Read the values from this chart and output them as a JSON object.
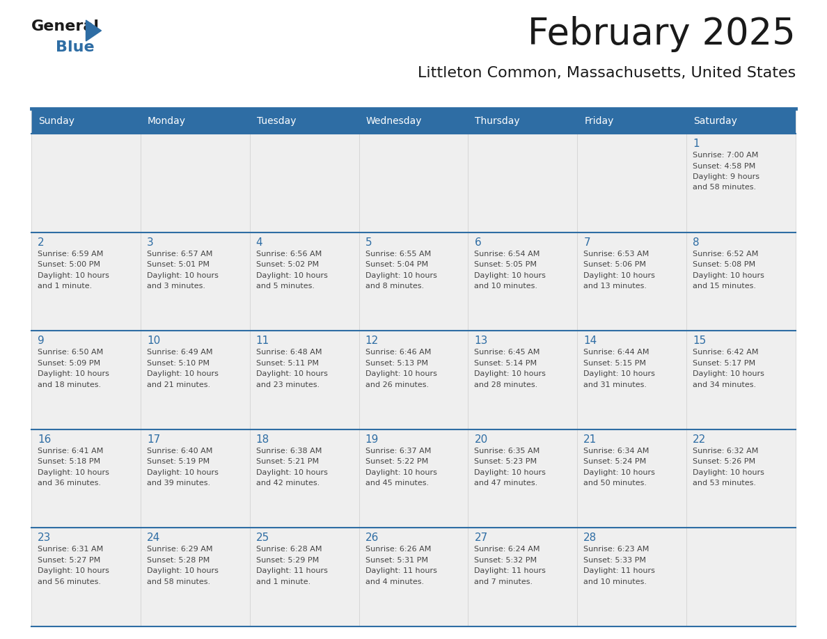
{
  "title": "February 2025",
  "subtitle": "Littleton Common, Massachusetts, United States",
  "days_of_week": [
    "Sunday",
    "Monday",
    "Tuesday",
    "Wednesday",
    "Thursday",
    "Friday",
    "Saturday"
  ],
  "header_bg": "#2E6DA4",
  "header_text": "#FFFFFF",
  "cell_bg": "#EFEFEF",
  "cell_bg_white": "#FFFFFF",
  "day_number_color": "#2E6DA4",
  "text_color": "#444444",
  "line_color": "#2E6DA4",
  "border_color": "#AAAAAA",
  "calendar_data": [
    [
      null,
      null,
      null,
      null,
      null,
      null,
      {
        "day": "1",
        "sunrise": "7:00 AM",
        "sunset": "4:58 PM",
        "daylight": "9 hours",
        "daylight2": "and 58 minutes."
      }
    ],
    [
      {
        "day": "2",
        "sunrise": "6:59 AM",
        "sunset": "5:00 PM",
        "daylight": "10 hours",
        "daylight2": "and 1 minute."
      },
      {
        "day": "3",
        "sunrise": "6:57 AM",
        "sunset": "5:01 PM",
        "daylight": "10 hours",
        "daylight2": "and 3 minutes."
      },
      {
        "day": "4",
        "sunrise": "6:56 AM",
        "sunset": "5:02 PM",
        "daylight": "10 hours",
        "daylight2": "and 5 minutes."
      },
      {
        "day": "5",
        "sunrise": "6:55 AM",
        "sunset": "5:04 PM",
        "daylight": "10 hours",
        "daylight2": "and 8 minutes."
      },
      {
        "day": "6",
        "sunrise": "6:54 AM",
        "sunset": "5:05 PM",
        "daylight": "10 hours",
        "daylight2": "and 10 minutes."
      },
      {
        "day": "7",
        "sunrise": "6:53 AM",
        "sunset": "5:06 PM",
        "daylight": "10 hours",
        "daylight2": "and 13 minutes."
      },
      {
        "day": "8",
        "sunrise": "6:52 AM",
        "sunset": "5:08 PM",
        "daylight": "10 hours",
        "daylight2": "and 15 minutes."
      }
    ],
    [
      {
        "day": "9",
        "sunrise": "6:50 AM",
        "sunset": "5:09 PM",
        "daylight": "10 hours",
        "daylight2": "and 18 minutes."
      },
      {
        "day": "10",
        "sunrise": "6:49 AM",
        "sunset": "5:10 PM",
        "daylight": "10 hours",
        "daylight2": "and 21 minutes."
      },
      {
        "day": "11",
        "sunrise": "6:48 AM",
        "sunset": "5:11 PM",
        "daylight": "10 hours",
        "daylight2": "and 23 minutes."
      },
      {
        "day": "12",
        "sunrise": "6:46 AM",
        "sunset": "5:13 PM",
        "daylight": "10 hours",
        "daylight2": "and 26 minutes."
      },
      {
        "day": "13",
        "sunrise": "6:45 AM",
        "sunset": "5:14 PM",
        "daylight": "10 hours",
        "daylight2": "and 28 minutes."
      },
      {
        "day": "14",
        "sunrise": "6:44 AM",
        "sunset": "5:15 PM",
        "daylight": "10 hours",
        "daylight2": "and 31 minutes."
      },
      {
        "day": "15",
        "sunrise": "6:42 AM",
        "sunset": "5:17 PM",
        "daylight": "10 hours",
        "daylight2": "and 34 minutes."
      }
    ],
    [
      {
        "day": "16",
        "sunrise": "6:41 AM",
        "sunset": "5:18 PM",
        "daylight": "10 hours",
        "daylight2": "and 36 minutes."
      },
      {
        "day": "17",
        "sunrise": "6:40 AM",
        "sunset": "5:19 PM",
        "daylight": "10 hours",
        "daylight2": "and 39 minutes."
      },
      {
        "day": "18",
        "sunrise": "6:38 AM",
        "sunset": "5:21 PM",
        "daylight": "10 hours",
        "daylight2": "and 42 minutes."
      },
      {
        "day": "19",
        "sunrise": "6:37 AM",
        "sunset": "5:22 PM",
        "daylight": "10 hours",
        "daylight2": "and 45 minutes."
      },
      {
        "day": "20",
        "sunrise": "6:35 AM",
        "sunset": "5:23 PM",
        "daylight": "10 hours",
        "daylight2": "and 47 minutes."
      },
      {
        "day": "21",
        "sunrise": "6:34 AM",
        "sunset": "5:24 PM",
        "daylight": "10 hours",
        "daylight2": "and 50 minutes."
      },
      {
        "day": "22",
        "sunrise": "6:32 AM",
        "sunset": "5:26 PM",
        "daylight": "10 hours",
        "daylight2": "and 53 minutes."
      }
    ],
    [
      {
        "day": "23",
        "sunrise": "6:31 AM",
        "sunset": "5:27 PM",
        "daylight": "10 hours",
        "daylight2": "and 56 minutes."
      },
      {
        "day": "24",
        "sunrise": "6:29 AM",
        "sunset": "5:28 PM",
        "daylight": "10 hours",
        "daylight2": "and 58 minutes."
      },
      {
        "day": "25",
        "sunrise": "6:28 AM",
        "sunset": "5:29 PM",
        "daylight": "11 hours",
        "daylight2": "and 1 minute."
      },
      {
        "day": "26",
        "sunrise": "6:26 AM",
        "sunset": "5:31 PM",
        "daylight": "11 hours",
        "daylight2": "and 4 minutes."
      },
      {
        "day": "27",
        "sunrise": "6:24 AM",
        "sunset": "5:32 PM",
        "daylight": "11 hours",
        "daylight2": "and 7 minutes."
      },
      {
        "day": "28",
        "sunrise": "6:23 AM",
        "sunset": "5:33 PM",
        "daylight": "11 hours",
        "daylight2": "and 10 minutes."
      },
      null
    ]
  ]
}
